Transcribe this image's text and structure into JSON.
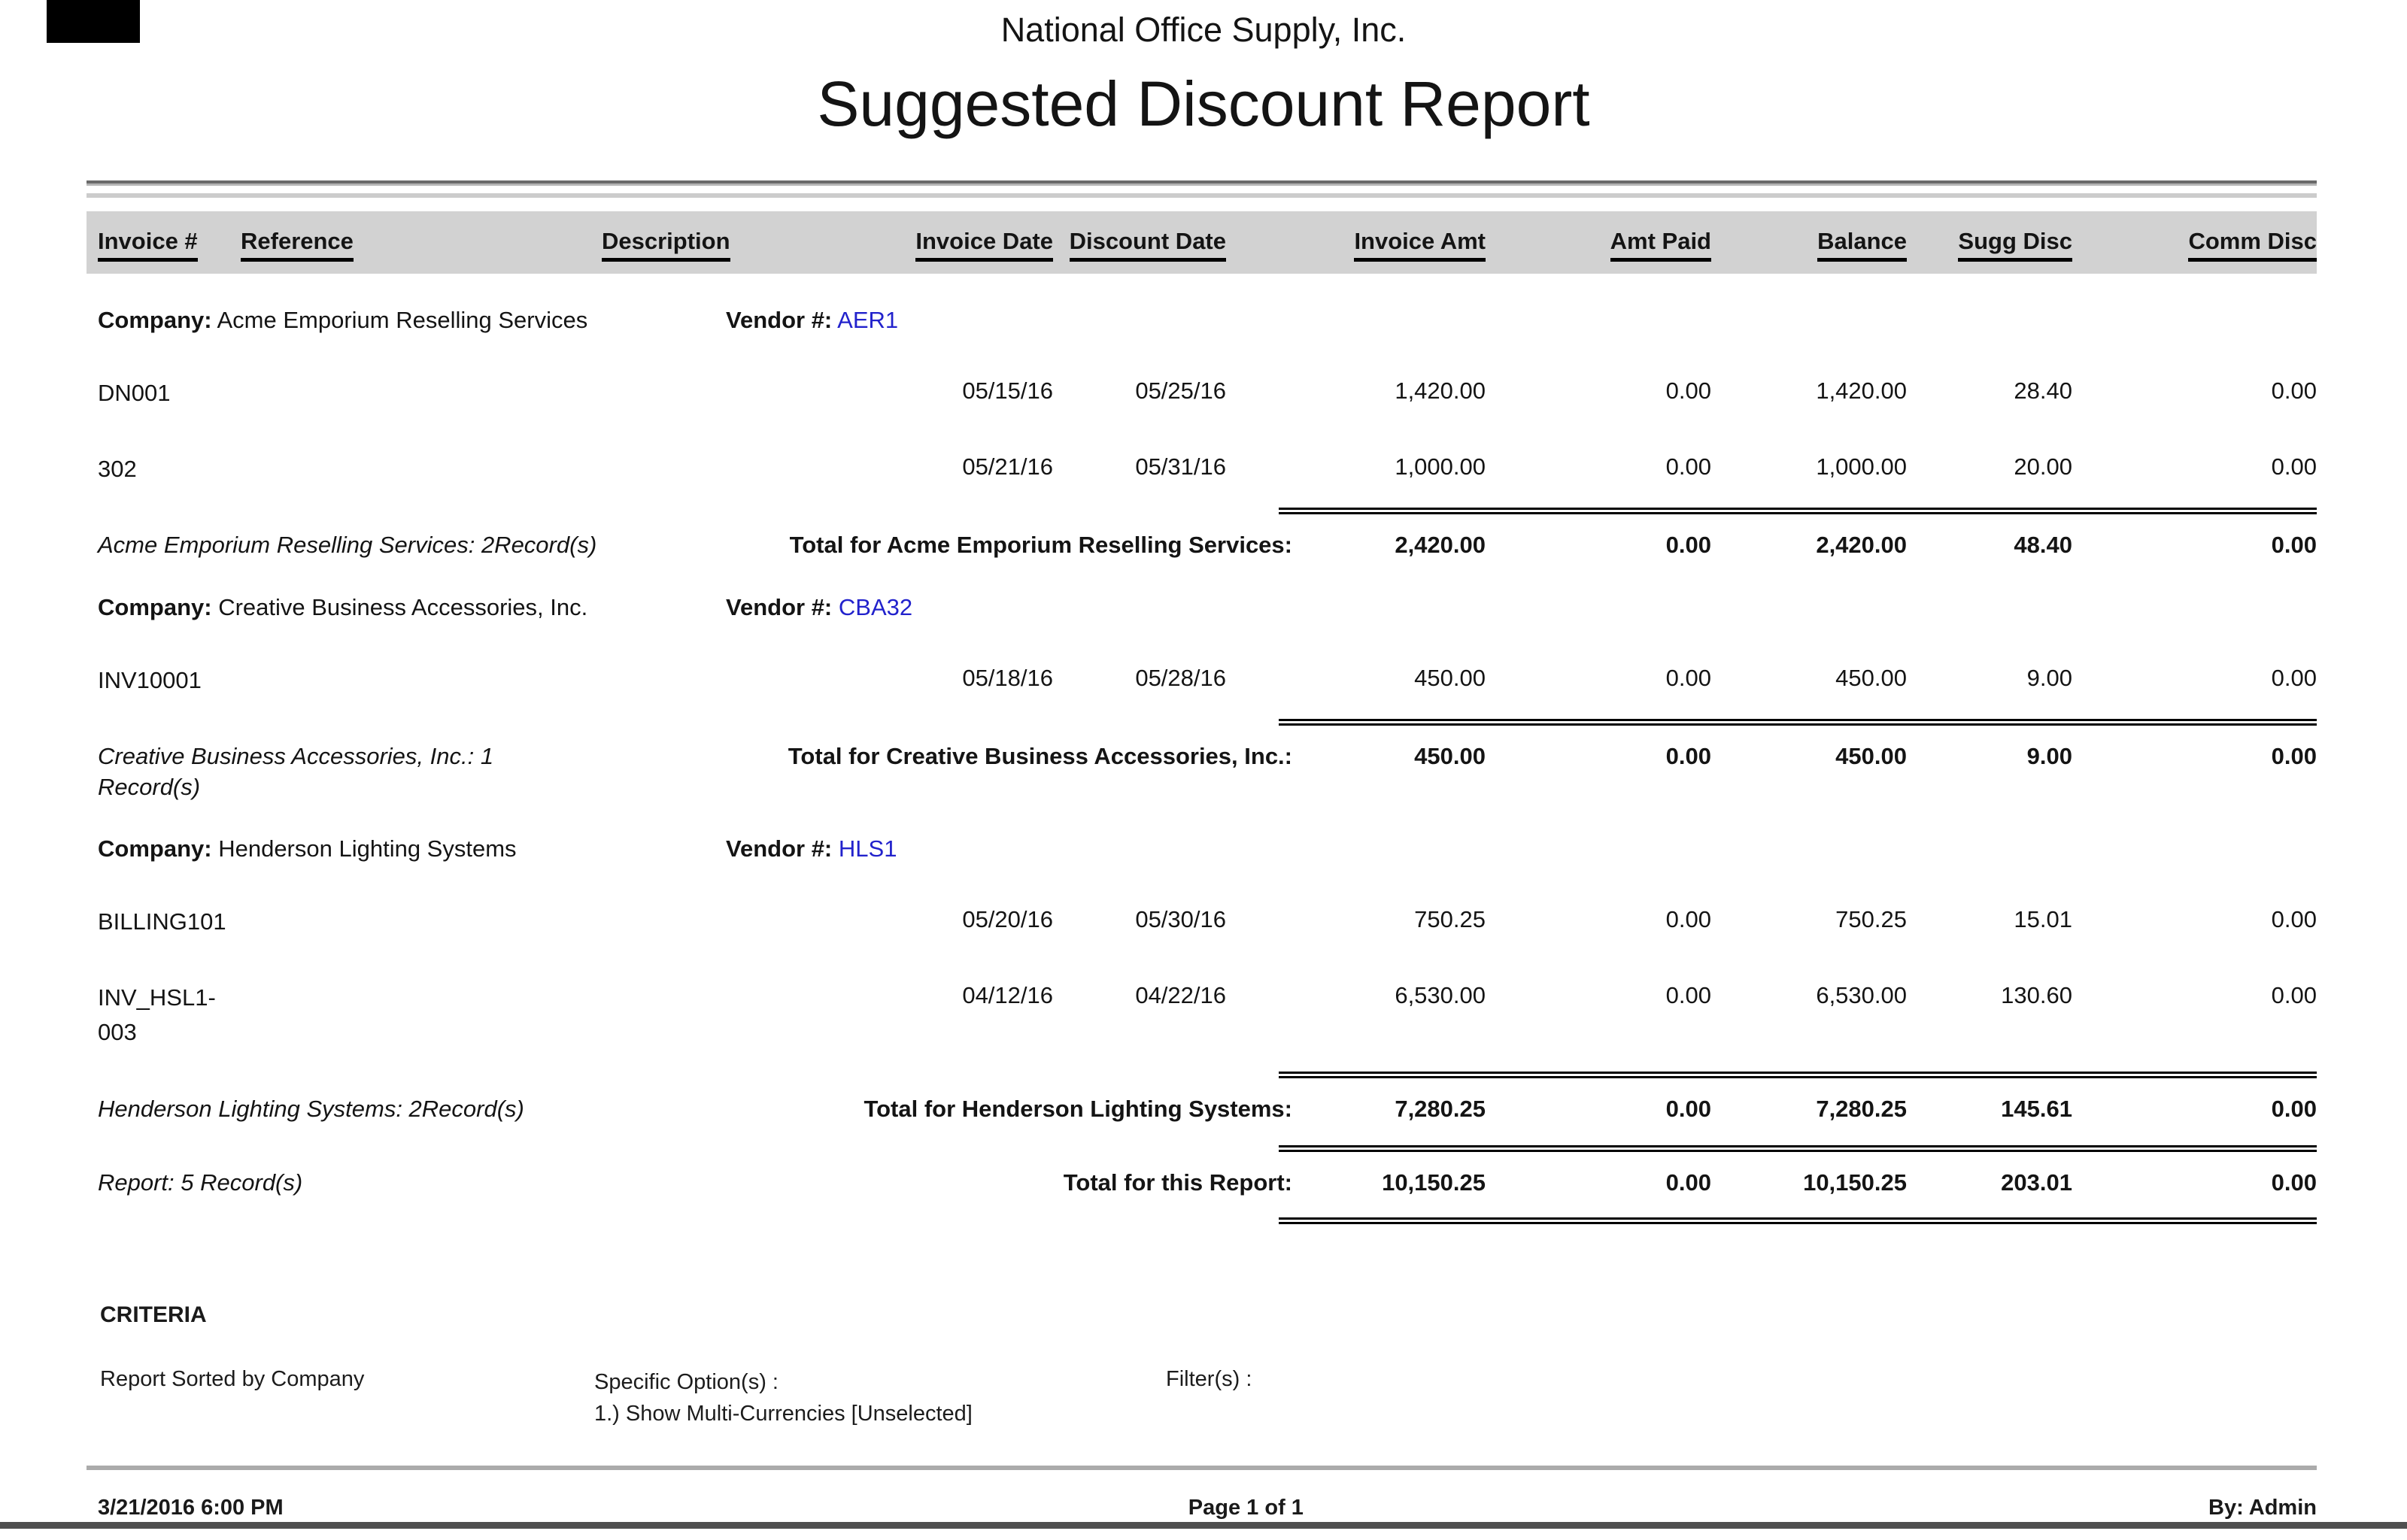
{
  "report": {
    "company_name": "National Office Supply, Inc.",
    "title": "Suggested Discount Report",
    "columns": [
      "Invoice #",
      "Reference",
      "Description",
      "Invoice Date",
      "Discount Date",
      "Invoice Amt",
      "Amt Paid",
      "Balance",
      "Sugg Disc",
      "Comm Disc"
    ],
    "groups": [
      {
        "company_label": "Company:",
        "company": "Acme Emporium Reselling Services",
        "vendor_label": "Vendor #:",
        "vendor": "AER1",
        "rows": [
          {
            "invoice": "DN001",
            "invoice_date": "05/15/16",
            "discount_date": "05/25/16",
            "invoice_amt": "1,420.00",
            "amt_paid": "0.00",
            "balance": "1,420.00",
            "sugg_disc": "28.40",
            "comm_disc": "0.00"
          },
          {
            "invoice": "302",
            "invoice_date": "05/21/16",
            "discount_date": "05/31/16",
            "invoice_amt": "1,000.00",
            "amt_paid": "0.00",
            "balance": "1,000.00",
            "sugg_disc": "20.00",
            "comm_disc": "0.00"
          }
        ],
        "record_summary": "Acme Emporium Reselling Services: 2Record(s)",
        "total_label": "Total for Acme Emporium Reselling Services:",
        "totals": {
          "invoice_amt": "2,420.00",
          "amt_paid": "0.00",
          "balance": "2,420.00",
          "sugg_disc": "48.40",
          "comm_disc": "0.00"
        }
      },
      {
        "company_label": "Company:",
        "company": "Creative Business Accessories, Inc.",
        "vendor_label": "Vendor #:",
        "vendor": "CBA32",
        "rows": [
          {
            "invoice": "INV10001",
            "invoice_date": "05/18/16",
            "discount_date": "05/28/16",
            "invoice_amt": "450.00",
            "amt_paid": "0.00",
            "balance": "450.00",
            "sugg_disc": "9.00",
            "comm_disc": "0.00"
          }
        ],
        "record_summary": "Creative Business Accessories, Inc.: 1 Record(s)",
        "total_label": "Total for Creative Business Accessories, Inc.:",
        "totals": {
          "invoice_amt": "450.00",
          "amt_paid": "0.00",
          "balance": "450.00",
          "sugg_disc": "9.00",
          "comm_disc": "0.00"
        }
      },
      {
        "company_label": "Company:",
        "company": "Henderson Lighting Systems",
        "vendor_label": "Vendor #:",
        "vendor": "HLS1",
        "rows": [
          {
            "invoice": "BILLING101",
            "invoice_date": "05/20/16",
            "discount_date": "05/30/16",
            "invoice_amt": "750.25",
            "amt_paid": "0.00",
            "balance": "750.25",
            "sugg_disc": "15.01",
            "comm_disc": "0.00"
          },
          {
            "invoice": "INV_HSL1-003",
            "invoice_date": "04/12/16",
            "discount_date": "04/22/16",
            "invoice_amt": "6,530.00",
            "amt_paid": "0.00",
            "balance": "6,530.00",
            "sugg_disc": "130.60",
            "comm_disc": "0.00"
          }
        ],
        "record_summary": "Henderson Lighting Systems: 2Record(s)",
        "total_label": "Total for Henderson Lighting Systems:",
        "totals": {
          "invoice_amt": "7,280.25",
          "amt_paid": "0.00",
          "balance": "7,280.25",
          "sugg_disc": "145.61",
          "comm_disc": "0.00"
        }
      }
    ],
    "summary": {
      "record_summary": "Report: 5 Record(s)",
      "total_label": "Total for this Report:",
      "totals": {
        "invoice_amt": "10,150.25",
        "amt_paid": "0.00",
        "balance": "10,150.25",
        "sugg_disc": "203.01",
        "comm_disc": "0.00"
      }
    },
    "criteria": {
      "heading": "CRITERIA",
      "sorted_by": "Report Sorted by Company",
      "specific_options_label": "Specific Option(s) :",
      "specific_options": [
        "1.) Show Multi-Currencies [Unselected]"
      ],
      "filters_label": "Filter(s) :"
    },
    "footer": {
      "datetime": "3/21/2016 6:00 PM",
      "page": "Page 1 of 1",
      "by": "By: Admin"
    }
  },
  "colors": {
    "vendor_link": "#2222cc",
    "header_band": "#d2d2d2"
  }
}
